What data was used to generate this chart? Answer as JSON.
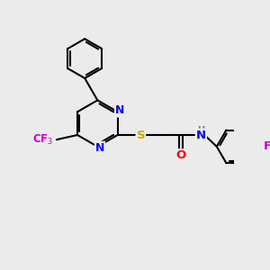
{
  "background_color": "#ebebeb",
  "bond_color": "#000000",
  "bond_width": 1.5,
  "atom_colors": {
    "N": "#0000ff",
    "O": "#ff0000",
    "S": "#ccaa00",
    "F": "#cc00cc",
    "H": "#777777",
    "C": "#000000"
  },
  "figsize": [
    3.0,
    3.0
  ],
  "dpi": 100,
  "xlim": [
    0,
    10
  ],
  "ylim": [
    0,
    10
  ]
}
